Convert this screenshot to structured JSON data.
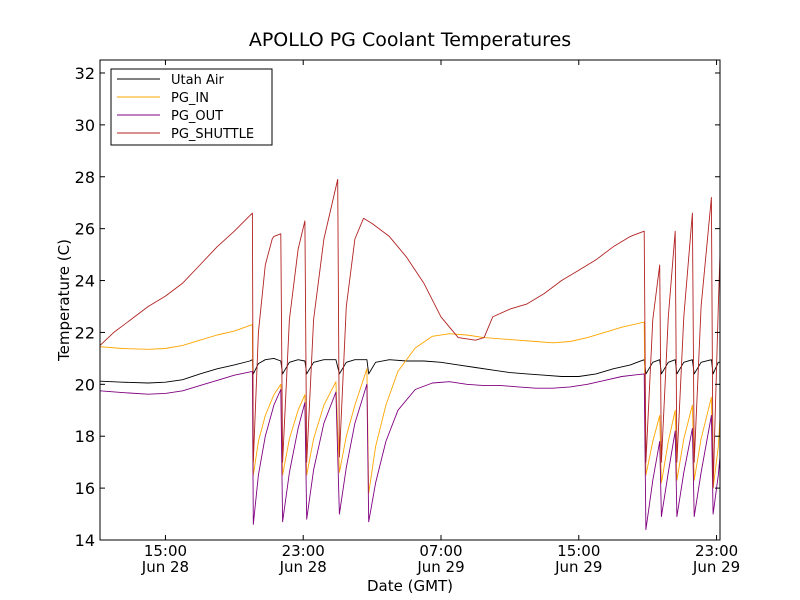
{
  "chart_data": {
    "type": "line",
    "title": "APOLLO PG Coolant Temperatures",
    "xlabel": "Date (GMT)",
    "ylabel": "Temperature (C)",
    "x_unit": "hours since Jun 28 00:00 GMT",
    "xlim": [
      11.2,
      47.2
    ],
    "ylim": [
      14,
      32.5
    ],
    "y_ticks": [
      14,
      16,
      18,
      20,
      22,
      24,
      26,
      28,
      30,
      32
    ],
    "x_ticks": [
      {
        "value": 15,
        "time": "15:00",
        "date": "Jun 28"
      },
      {
        "value": 23,
        "time": "23:00",
        "date": "Jun 28"
      },
      {
        "value": 31,
        "time": "07:00",
        "date": "Jun 29"
      },
      {
        "value": 39,
        "time": "15:00",
        "date": "Jun 29"
      },
      {
        "value": 47,
        "time": "23:00",
        "date": "Jun 29"
      }
    ],
    "legend_position": "top-left",
    "series": [
      {
        "name": "Utah Air",
        "color": "#000000",
        "points": [
          [
            11.2,
            20.12
          ],
          [
            12.5,
            20.08
          ],
          [
            14,
            20.05
          ],
          [
            15,
            20.08
          ],
          [
            16,
            20.18
          ],
          [
            17,
            20.4
          ],
          [
            18,
            20.6
          ],
          [
            19,
            20.75
          ],
          [
            19.9,
            20.9
          ],
          [
            20.05,
            20.95
          ],
          [
            20.1,
            20.4
          ],
          [
            20.4,
            20.8
          ],
          [
            20.8,
            20.95
          ],
          [
            21.3,
            21.0
          ],
          [
            21.7,
            20.9
          ],
          [
            21.8,
            20.4
          ],
          [
            22.2,
            20.85
          ],
          [
            22.7,
            20.95
          ],
          [
            23.1,
            20.9
          ],
          [
            23.2,
            20.4
          ],
          [
            23.6,
            20.85
          ],
          [
            24.2,
            20.95
          ],
          [
            24.9,
            20.95
          ],
          [
            25.1,
            20.4
          ],
          [
            25.5,
            20.85
          ],
          [
            26,
            20.95
          ],
          [
            26.7,
            20.95
          ],
          [
            26.8,
            20.4
          ],
          [
            27.2,
            20.85
          ],
          [
            28,
            20.95
          ],
          [
            29,
            20.9
          ],
          [
            30,
            20.9
          ],
          [
            31,
            20.85
          ],
          [
            32,
            20.75
          ],
          [
            33,
            20.65
          ],
          [
            34,
            20.55
          ],
          [
            35,
            20.45
          ],
          [
            36,
            20.4
          ],
          [
            37,
            20.35
          ],
          [
            38,
            20.3
          ],
          [
            39,
            20.3
          ],
          [
            40,
            20.4
          ],
          [
            41,
            20.6
          ],
          [
            42,
            20.75
          ],
          [
            42.8,
            20.95
          ],
          [
            42.9,
            20.4
          ],
          [
            43.3,
            20.85
          ],
          [
            43.7,
            20.95
          ],
          [
            43.8,
            20.4
          ],
          [
            44.2,
            20.85
          ],
          [
            44.6,
            20.95
          ],
          [
            44.7,
            20.4
          ],
          [
            45.1,
            20.85
          ],
          [
            45.6,
            20.95
          ],
          [
            45.7,
            20.4
          ],
          [
            46.1,
            20.85
          ],
          [
            46.7,
            20.95
          ],
          [
            46.8,
            20.4
          ],
          [
            47.1,
            20.85
          ],
          [
            47.2,
            20.85
          ]
        ]
      },
      {
        "name": "PG_IN",
        "color": "#ffa500",
        "points": [
          [
            11.2,
            21.45
          ],
          [
            12.5,
            21.38
          ],
          [
            14,
            21.35
          ],
          [
            15,
            21.38
          ],
          [
            16,
            21.5
          ],
          [
            17,
            21.7
          ],
          [
            18,
            21.9
          ],
          [
            19,
            22.05
          ],
          [
            20.05,
            22.3
          ],
          [
            20.1,
            16.5
          ],
          [
            20.4,
            17.8
          ],
          [
            20.8,
            18.8
          ],
          [
            21.3,
            19.6
          ],
          [
            21.7,
            20.0
          ],
          [
            21.8,
            16.5
          ],
          [
            22.2,
            17.9
          ],
          [
            22.7,
            19.0
          ],
          [
            23.1,
            19.6
          ],
          [
            23.2,
            16.5
          ],
          [
            23.6,
            17.9
          ],
          [
            24.2,
            19.2
          ],
          [
            24.9,
            20.1
          ],
          [
            25.1,
            16.6
          ],
          [
            25.5,
            18.0
          ],
          [
            26,
            19.2
          ],
          [
            26.7,
            20.6
          ],
          [
            26.8,
            15.8
          ],
          [
            27.2,
            17.6
          ],
          [
            27.8,
            19.2
          ],
          [
            28.5,
            20.5
          ],
          [
            29.5,
            21.4
          ],
          [
            30.5,
            21.85
          ],
          [
            31.5,
            21.95
          ],
          [
            32.5,
            21.9
          ],
          [
            33.5,
            21.8
          ],
          [
            34.5,
            21.75
          ],
          [
            35.5,
            21.7
          ],
          [
            36.5,
            21.65
          ],
          [
            37.5,
            21.6
          ],
          [
            38.5,
            21.65
          ],
          [
            39.5,
            21.8
          ],
          [
            40.5,
            22.0
          ],
          [
            41.5,
            22.2
          ],
          [
            42.8,
            22.4
          ],
          [
            42.9,
            16.5
          ],
          [
            43.3,
            17.8
          ],
          [
            43.7,
            18.8
          ],
          [
            43.8,
            16.2
          ],
          [
            44.2,
            17.8
          ],
          [
            44.6,
            19.0
          ],
          [
            44.7,
            16.3
          ],
          [
            45.1,
            17.9
          ],
          [
            45.6,
            19.2
          ],
          [
            45.7,
            16.3
          ],
          [
            46.1,
            17.9
          ],
          [
            46.7,
            19.5
          ],
          [
            46.8,
            16.0
          ],
          [
            47.1,
            17.6
          ],
          [
            47.2,
            18.7
          ]
        ]
      },
      {
        "name": "PG_OUT",
        "color": "#800080",
        "points": [
          [
            11.2,
            19.75
          ],
          [
            12.5,
            19.68
          ],
          [
            14,
            19.62
          ],
          [
            15,
            19.65
          ],
          [
            16,
            19.75
          ],
          [
            17,
            19.95
          ],
          [
            18,
            20.15
          ],
          [
            19,
            20.35
          ],
          [
            20.05,
            20.5
          ],
          [
            20.1,
            14.6
          ],
          [
            20.4,
            16.5
          ],
          [
            20.8,
            18.0
          ],
          [
            21.3,
            19.2
          ],
          [
            21.7,
            19.8
          ],
          [
            21.8,
            14.7
          ],
          [
            22.2,
            16.6
          ],
          [
            22.7,
            18.3
          ],
          [
            23.1,
            19.3
          ],
          [
            23.2,
            14.8
          ],
          [
            23.6,
            16.7
          ],
          [
            24.2,
            18.5
          ],
          [
            24.9,
            19.7
          ],
          [
            25.1,
            15.0
          ],
          [
            25.5,
            16.8
          ],
          [
            26,
            18.5
          ],
          [
            26.7,
            20.0
          ],
          [
            26.8,
            14.7
          ],
          [
            27.2,
            16.2
          ],
          [
            27.8,
            17.8
          ],
          [
            28.5,
            19.0
          ],
          [
            29.5,
            19.8
          ],
          [
            30.5,
            20.05
          ],
          [
            31.5,
            20.1
          ],
          [
            32.5,
            20.0
          ],
          [
            33.5,
            19.95
          ],
          [
            34.5,
            19.95
          ],
          [
            35.5,
            19.9
          ],
          [
            36.5,
            19.85
          ],
          [
            37.5,
            19.85
          ],
          [
            38.5,
            19.9
          ],
          [
            39.5,
            20.0
          ],
          [
            40.5,
            20.15
          ],
          [
            41.5,
            20.3
          ],
          [
            42.8,
            20.4
          ],
          [
            42.9,
            14.4
          ],
          [
            43.3,
            16.3
          ],
          [
            43.7,
            17.8
          ],
          [
            43.8,
            14.9
          ],
          [
            44.2,
            16.6
          ],
          [
            44.6,
            18.2
          ],
          [
            44.7,
            14.9
          ],
          [
            45.1,
            16.6
          ],
          [
            45.6,
            18.3
          ],
          [
            45.7,
            14.9
          ],
          [
            46.1,
            16.6
          ],
          [
            46.7,
            18.8
          ],
          [
            46.8,
            15.0
          ],
          [
            47.1,
            16.5
          ],
          [
            47.2,
            17.2
          ]
        ]
      },
      {
        "name": "PG_SHUTTLE",
        "color": "#b22222",
        "points": [
          [
            11.2,
            21.5
          ],
          [
            12,
            22.0
          ],
          [
            13,
            22.5
          ],
          [
            14,
            23.0
          ],
          [
            15,
            23.4
          ],
          [
            16,
            23.9
          ],
          [
            17,
            24.6
          ],
          [
            18,
            25.3
          ],
          [
            19,
            25.9
          ],
          [
            20.05,
            26.6
          ],
          [
            20.1,
            17.0
          ],
          [
            20.4,
            22.0
          ],
          [
            20.8,
            24.6
          ],
          [
            21.2,
            25.6
          ],
          [
            21.3,
            25.7
          ],
          [
            21.7,
            25.8
          ],
          [
            21.8,
            17.0
          ],
          [
            22.2,
            22.5
          ],
          [
            22.7,
            25.2
          ],
          [
            23.1,
            26.3
          ],
          [
            23.2,
            17.0
          ],
          [
            23.6,
            22.5
          ],
          [
            24.2,
            25.6
          ],
          [
            24.9,
            27.6
          ],
          [
            25,
            27.9
          ],
          [
            25.1,
            17.2
          ],
          [
            25.5,
            23.0
          ],
          [
            26,
            25.6
          ],
          [
            26.5,
            26.4
          ],
          [
            27,
            26.2
          ],
          [
            28,
            25.7
          ],
          [
            29,
            24.9
          ],
          [
            30,
            23.9
          ],
          [
            31,
            22.6
          ],
          [
            32,
            21.8
          ],
          [
            33,
            21.7
          ],
          [
            33.5,
            21.8
          ],
          [
            34,
            22.6
          ],
          [
            35,
            22.9
          ],
          [
            36,
            23.1
          ],
          [
            37,
            23.5
          ],
          [
            38,
            24.0
          ],
          [
            39,
            24.4
          ],
          [
            40,
            24.8
          ],
          [
            41,
            25.3
          ],
          [
            42,
            25.7
          ],
          [
            42.8,
            25.9
          ],
          [
            42.9,
            17.0
          ],
          [
            43.3,
            22.5
          ],
          [
            43.7,
            24.6
          ],
          [
            43.8,
            17.0
          ],
          [
            44.2,
            22.6
          ],
          [
            44.6,
            25.9
          ],
          [
            44.7,
            17.0
          ],
          [
            45.1,
            22.6
          ],
          [
            45.6,
            26.6
          ],
          [
            45.7,
            17.0
          ],
          [
            46.1,
            23.0
          ],
          [
            46.7,
            27.2
          ],
          [
            46.8,
            16.0
          ],
          [
            47.1,
            23.0
          ],
          [
            47.2,
            25.0
          ]
        ]
      }
    ]
  }
}
